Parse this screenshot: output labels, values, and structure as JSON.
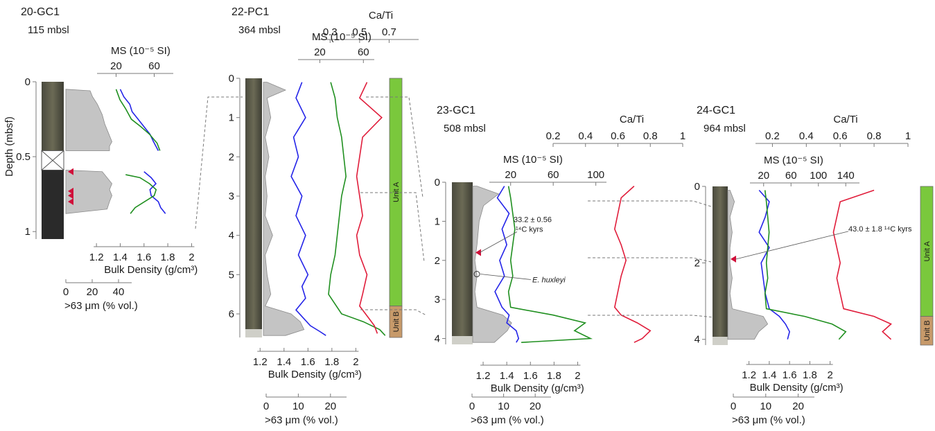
{
  "figure": {
    "depth_axis_label": "Depth (mbsf)",
    "units": {
      "unit_a": "Unit A",
      "unit_b": "Unit B"
    }
  },
  "colors": {
    "bulk_density": "#2424e8",
    "magnetic_susceptibility": "#1f8f1f",
    "ca_ti": "#e01c3a",
    "grain_fill": "#c4c4c4",
    "unit_a": "#7ac83c",
    "unit_b": "#c79a6a",
    "age_marker": "#d0103a"
  },
  "chart_data": [
    {
      "type": "line",
      "core": "20-GC1",
      "water_depth": "115 mbsl",
      "depth_ticks": [
        "0",
        "0.5",
        "1"
      ],
      "ylim": [
        0,
        1.05
      ],
      "gap_interval": [
        0.46,
        0.59
      ],
      "xlabel_density": "Bulk Density (g/cm³)",
      "density_ticks": [
        "1.2",
        "1.4",
        "1.6",
        "1.8",
        "2"
      ],
      "xlabel_grain": ">63 μm (% vol.)",
      "grain_ticks": [
        "0",
        "20",
        "40"
      ],
      "ms_label": "MS (10⁻⁵ SI)",
      "ms_ticks": [
        "20",
        "60"
      ],
      "age_markers_depth": [
        0.6,
        0.73,
        0.76,
        0.8
      ],
      "series": [
        {
          "name": "Bulk Density",
          "x": [
            1.4,
            1.43,
            1.48,
            1.5,
            1.55,
            1.6,
            1.65,
            1.68,
            1.7,
            1.72
          ],
          "depth": [
            0.05,
            0.1,
            0.15,
            0.2,
            0.25,
            0.3,
            0.35,
            0.4,
            0.43,
            0.46
          ]
        },
        {
          "name": "Bulk Density (lower)",
          "x": [
            1.6,
            1.66,
            1.7,
            1.65,
            1.66,
            1.72,
            1.74,
            1.76,
            1.78
          ],
          "depth": [
            0.6,
            0.64,
            0.68,
            0.72,
            0.76,
            0.8,
            0.84,
            0.86,
            0.88
          ]
        },
        {
          "name": "MS",
          "x": [
            20,
            24,
            30,
            36,
            46,
            55,
            63,
            66
          ],
          "depth": [
            0.05,
            0.12,
            0.18,
            0.25,
            0.3,
            0.35,
            0.41,
            0.46
          ]
        },
        {
          "name": "MS (lower)",
          "x": [
            30,
            45,
            55,
            62,
            60,
            50,
            40,
            35
          ],
          "depth": [
            0.62,
            0.64,
            0.68,
            0.72,
            0.76,
            0.8,
            0.84,
            0.88
          ]
        },
        {
          "name": ">63 μm",
          "x": [
            0,
            20,
            22,
            26,
            30,
            32,
            34,
            36,
            38,
            36,
            36
          ],
          "depth": [
            0.05,
            0.06,
            0.1,
            0.15,
            0.22,
            0.28,
            0.32,
            0.36,
            0.4,
            0.43,
            0.46
          ]
        },
        {
          "name": ">63 μm (lower)",
          "x": [
            0,
            30,
            34,
            38,
            36,
            38,
            36,
            34,
            0
          ],
          "depth": [
            0.59,
            0.6,
            0.64,
            0.68,
            0.72,
            0.76,
            0.8,
            0.85,
            0.88
          ]
        }
      ]
    },
    {
      "type": "line",
      "core": "22-PC1",
      "water_depth": "364 mbsl",
      "depth_ticks": [
        "0",
        "1",
        "2",
        "3",
        "4",
        "5",
        "6"
      ],
      "ylim": [
        0,
        6.6
      ],
      "xlabel_density": "Bulk Density (g/cm³)",
      "density_ticks": [
        "1.2",
        "1.4",
        "1.6",
        "1.8",
        "2"
      ],
      "xlabel_grain": ">63 μm (% vol.)",
      "grain_ticks": [
        "0",
        "10",
        "20"
      ],
      "ms_label": "MS (10⁻⁵ SI)",
      "ms_ticks": [
        "20",
        "60"
      ],
      "cati_label": "Ca/Ti",
      "cati_ticks": [
        "0.3",
        "0.5",
        "0.7"
      ],
      "units": [
        {
          "label": "Unit A",
          "from": 0,
          "to": 5.8
        },
        {
          "label": "Unit B",
          "from": 5.8,
          "to": 6.6
        }
      ],
      "series": [
        {
          "name": "Bulk Density",
          "x": [
            1.55,
            1.5,
            1.58,
            1.48,
            1.52,
            1.46,
            1.55,
            1.5,
            1.58,
            1.52,
            1.6,
            1.55,
            1.58,
            1.5,
            1.56,
            1.62,
            1.7,
            1.75
          ],
          "depth": [
            0.1,
            0.5,
            1.0,
            1.5,
            2.0,
            2.5,
            3.0,
            3.5,
            4.0,
            4.5,
            5.0,
            5.3,
            5.6,
            5.9,
            6.1,
            6.3,
            6.45,
            6.55
          ]
        },
        {
          "name": "MS",
          "x": [
            30,
            34,
            36,
            40,
            42,
            44,
            40,
            38,
            36,
            34,
            30,
            28,
            40,
            60,
            75,
            80
          ],
          "depth": [
            0.1,
            0.5,
            1.0,
            1.5,
            2.0,
            2.5,
            3.0,
            3.5,
            4.0,
            4.5,
            5.0,
            5.5,
            6.0,
            6.2,
            6.4,
            6.55
          ]
        },
        {
          "name": "Ca/Ti",
          "x": [
            0.55,
            0.5,
            0.65,
            0.52,
            0.5,
            0.48,
            0.5,
            0.52,
            0.48,
            0.5,
            0.55,
            0.52,
            0.5,
            0.56,
            0.6,
            0.62
          ],
          "depth": [
            0.1,
            0.5,
            1.0,
            1.5,
            2.0,
            2.5,
            3.0,
            3.5,
            4.0,
            4.5,
            5.0,
            5.5,
            5.8,
            6.1,
            6.3,
            6.5
          ]
        },
        {
          "name": ">63 μm",
          "x": [
            2,
            12,
            2,
            4,
            1,
            3,
            1,
            2,
            1,
            5,
            1,
            2,
            4,
            1,
            15,
            20,
            22,
            12
          ],
          "depth": [
            0.1,
            0.3,
            0.5,
            1.0,
            1.5,
            2.0,
            2.5,
            3.0,
            3.5,
            4.0,
            4.5,
            5.0,
            5.5,
            5.8,
            6.0,
            6.2,
            6.4,
            6.55
          ]
        }
      ]
    },
    {
      "type": "line",
      "core": "23-GC1",
      "water_depth": "508 mbsl",
      "depth_ticks": [
        "0",
        "1",
        "2",
        "3",
        "4"
      ],
      "ylim": [
        0,
        4.15
      ],
      "xlabel_density": "Bulk Density (g/cm³)",
      "density_ticks": [
        "1.2",
        "1.4",
        "1.6",
        "1.8",
        "2"
      ],
      "xlabel_grain": ">63 μm (% vol.)",
      "grain_ticks": [
        "0",
        "10",
        "20"
      ],
      "ms_label": "MS (10⁻⁵ SI)",
      "ms_ticks": [
        "20",
        "60",
        "100"
      ],
      "cati_label": "Ca/Ti",
      "cati_ticks": [
        "0.2",
        "0.4",
        "0.6",
        "0.8",
        "1"
      ],
      "annotations": [
        {
          "line1": "33.2 ± 0.56",
          "line2": "¹⁴C kyrs",
          "depth": 1.8
        },
        {
          "text": "E. huxleyi",
          "depth": 2.35
        }
      ],
      "series": [
        {
          "name": "Bulk Density",
          "x": [
            1.38,
            1.32,
            1.42,
            1.36,
            1.4,
            1.34,
            1.38,
            1.3,
            1.36,
            1.42,
            1.4,
            1.48,
            1.5,
            1.48
          ],
          "depth": [
            0.1,
            0.4,
            0.8,
            1.2,
            1.6,
            2.0,
            2.4,
            2.8,
            3.2,
            3.4,
            3.6,
            3.8,
            4.0,
            4.1
          ]
        },
        {
          "name": "MS",
          "x": [
            18,
            20,
            22,
            24,
            22,
            20,
            22,
            18,
            20,
            60,
            90,
            80,
            95,
            30
          ],
          "depth": [
            0.1,
            0.4,
            0.8,
            1.2,
            1.6,
            2.0,
            2.4,
            2.8,
            3.2,
            3.4,
            3.6,
            3.8,
            4.0,
            4.1
          ]
        },
        {
          "name": "Ca/Ti",
          "x": [
            0.7,
            0.62,
            0.6,
            0.58,
            0.62,
            0.65,
            0.62,
            0.6,
            0.58,
            0.62,
            0.72,
            0.8,
            0.75,
            0.7
          ],
          "depth": [
            0.1,
            0.4,
            0.8,
            1.2,
            1.6,
            2.0,
            2.4,
            2.8,
            3.2,
            3.4,
            3.6,
            3.8,
            4.0,
            4.1
          ]
        },
        {
          "name": ">63 μm",
          "x": [
            2,
            12,
            5,
            3,
            2,
            1,
            2,
            1,
            2,
            14,
            18,
            16,
            12,
            10
          ],
          "depth": [
            0.1,
            0.3,
            0.6,
            1.0,
            1.6,
            2.0,
            2.4,
            2.8,
            3.2,
            3.4,
            3.6,
            3.8,
            4.0,
            4.1
          ]
        }
      ]
    },
    {
      "type": "line",
      "core": "24-GC1",
      "water_depth": "964 mbsl",
      "depth_ticks": [
        "0",
        "2",
        "4"
      ],
      "ylim": [
        0,
        4.15
      ],
      "xlabel_density": "Bulk Density (g/cm³)",
      "density_ticks": [
        "1.2",
        "1.4",
        "1.6",
        "1.8",
        "2"
      ],
      "xlabel_grain": ">63 μm (% vol.)",
      "grain_ticks": [
        "0",
        "10",
        "20"
      ],
      "ms_label": "MS (10⁻⁵ SI)",
      "ms_ticks": [
        "20",
        "60",
        "100",
        "140"
      ],
      "cati_label": "Ca/Ti",
      "cati_ticks": [
        "0.2",
        "0.4",
        "0.6",
        "0.8",
        "1"
      ],
      "annotations": [
        {
          "text": "43.0 ± 1.8 ¹⁴C kyrs",
          "depth": 1.9
        }
      ],
      "units": [
        {
          "label": "Unit A",
          "from": 0,
          "to": 3.4
        },
        {
          "label": "Unit B",
          "from": 3.4,
          "to": 4.15
        }
      ],
      "series": [
        {
          "name": "Bulk Density",
          "x": [
            1.3,
            1.4,
            1.36,
            1.3,
            1.4,
            1.32,
            1.34,
            1.36,
            1.4,
            1.5,
            1.56,
            1.6,
            1.58
          ],
          "depth": [
            0.1,
            0.4,
            0.8,
            1.2,
            1.6,
            2.0,
            2.4,
            2.8,
            3.2,
            3.4,
            3.6,
            3.8,
            4.0
          ]
        },
        {
          "name": "MS",
          "x": [
            22,
            24,
            26,
            28,
            26,
            24,
            26,
            22,
            24,
            80,
            120,
            140,
            130
          ],
          "depth": [
            0.1,
            0.4,
            0.8,
            1.2,
            1.6,
            2.0,
            2.4,
            2.8,
            3.2,
            3.4,
            3.6,
            3.8,
            4.0
          ]
        },
        {
          "name": "Ca/Ti",
          "x": [
            0.8,
            0.6,
            0.58,
            0.56,
            0.58,
            0.6,
            0.58,
            0.6,
            0.62,
            0.8,
            0.9,
            0.85,
            0.9
          ],
          "depth": [
            0.1,
            0.4,
            0.8,
            1.2,
            1.6,
            2.0,
            2.4,
            2.8,
            3.2,
            3.4,
            3.6,
            3.8,
            4.0
          ]
        },
        {
          "name": ">63 μm",
          "x": [
            1,
            3,
            1,
            2,
            1,
            1,
            2,
            1,
            2,
            16,
            18,
            14,
            12
          ],
          "depth": [
            0.1,
            0.4,
            0.8,
            1.2,
            1.6,
            2.0,
            2.4,
            2.8,
            3.2,
            3.4,
            3.6,
            3.8,
            4.0
          ]
        }
      ]
    }
  ]
}
